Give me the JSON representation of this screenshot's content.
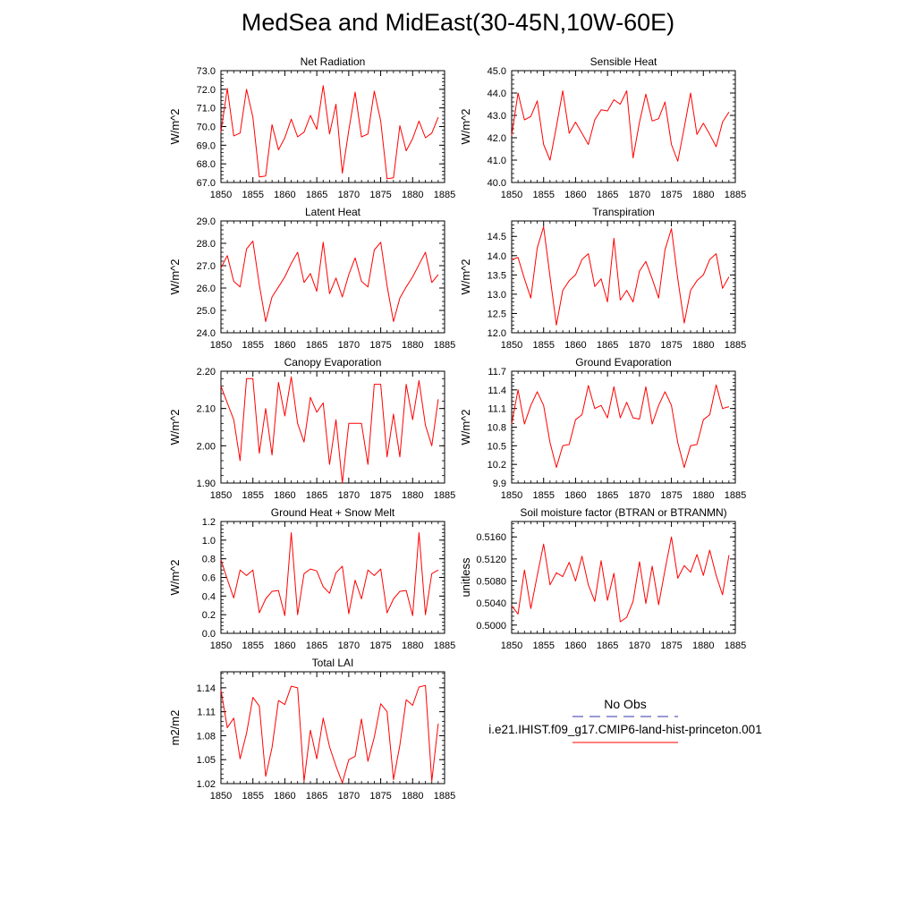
{
  "title": "MedSea and MidEast(30-45N,10W-60E)",
  "legend": {
    "obs_label": "No Obs",
    "obs_color": "#3333aa",
    "model_label": "i.e21.IHIST.f09_g17.CMIP6-land-hist-princeton.001",
    "model_color": "#ff0000"
  },
  "chart_data": [
    {
      "type": "line",
      "title": "Net Radiation",
      "ylabel": "W/m^2",
      "xlim": [
        1850,
        1885
      ],
      "xticks": [
        "1850",
        "1855",
        "1860",
        "1865",
        "1870",
        "1875",
        "1880",
        "1885"
      ],
      "ylim": [
        67.0,
        73.0
      ],
      "yticks": [
        "67.0",
        "68.0",
        "69.0",
        "70.0",
        "71.0",
        "72.0",
        "73.0"
      ],
      "x": [
        1850,
        1851,
        1852,
        1853,
        1854,
        1855,
        1856,
        1857,
        1858,
        1859,
        1860,
        1861,
        1862,
        1863,
        1864,
        1865,
        1866,
        1867,
        1868,
        1869,
        1870,
        1871,
        1872,
        1873,
        1874,
        1875,
        1876,
        1877,
        1878,
        1879,
        1880,
        1881,
        1882,
        1883,
        1884
      ],
      "series": [
        {
          "values": [
            69.7,
            72.05,
            69.5,
            69.65,
            72.0,
            70.5,
            67.3,
            67.35,
            70.1,
            68.75,
            69.4,
            70.4,
            69.45,
            69.7,
            70.6,
            69.85,
            72.2,
            69.6,
            71.2,
            67.5,
            69.8,
            71.85,
            69.45,
            69.6,
            71.9,
            70.3,
            67.2,
            67.25,
            70.05,
            68.7,
            69.35,
            70.3,
            69.4,
            69.65,
            70.5
          ]
        }
      ]
    },
    {
      "type": "line",
      "title": "Sensible Heat",
      "ylabel": "W/m^2",
      "xlim": [
        1850,
        1885
      ],
      "xticks": [
        "1850",
        "1855",
        "1860",
        "1865",
        "1870",
        "1875",
        "1880",
        "1885"
      ],
      "ylim": [
        40.0,
        45.0
      ],
      "yticks": [
        "40.0",
        "41.0",
        "42.0",
        "43.0",
        "44.0",
        "45.0"
      ],
      "x": [
        1850,
        1851,
        1852,
        1853,
        1854,
        1855,
        1856,
        1857,
        1858,
        1859,
        1860,
        1861,
        1862,
        1863,
        1864,
        1865,
        1866,
        1867,
        1868,
        1869,
        1870,
        1871,
        1872,
        1873,
        1874,
        1875,
        1876,
        1877,
        1878,
        1879,
        1880,
        1881,
        1882,
        1883,
        1884
      ],
      "series": [
        {
          "values": [
            42.1,
            44.0,
            42.8,
            42.95,
            43.65,
            41.7,
            41.0,
            42.5,
            44.1,
            42.2,
            42.7,
            42.2,
            41.7,
            42.8,
            43.25,
            43.2,
            43.7,
            43.5,
            44.1,
            41.1,
            42.7,
            43.95,
            42.75,
            42.85,
            43.6,
            41.7,
            40.95,
            42.45,
            44.0,
            42.15,
            42.65,
            42.15,
            41.6,
            42.7,
            43.15
          ]
        }
      ]
    },
    {
      "type": "line",
      "title": "Latent Heat",
      "ylabel": "W/m^2",
      "xlim": [
        1850,
        1885
      ],
      "xticks": [
        "1850",
        "1855",
        "1860",
        "1865",
        "1870",
        "1875",
        "1880",
        "1885"
      ],
      "ylim": [
        24.0,
        29.0
      ],
      "yticks": [
        "24.0",
        "25.0",
        "26.0",
        "27.0",
        "28.0",
        "29.0"
      ],
      "x": [
        1850,
        1851,
        1852,
        1853,
        1854,
        1855,
        1856,
        1857,
        1858,
        1859,
        1860,
        1861,
        1862,
        1863,
        1864,
        1865,
        1866,
        1867,
        1868,
        1869,
        1870,
        1871,
        1872,
        1873,
        1874,
        1875,
        1876,
        1877,
        1878,
        1879,
        1880,
        1881,
        1882,
        1883,
        1884
      ],
      "series": [
        {
          "values": [
            26.9,
            27.45,
            26.3,
            26.05,
            27.75,
            28.1,
            26.15,
            24.5,
            25.6,
            26.05,
            26.5,
            27.1,
            27.6,
            26.25,
            26.65,
            25.85,
            28.05,
            25.75,
            26.45,
            25.6,
            26.6,
            27.35,
            26.3,
            26.05,
            27.7,
            28.05,
            26.1,
            24.5,
            25.55,
            26.05,
            26.5,
            27.05,
            27.6,
            26.25,
            26.6
          ]
        }
      ]
    },
    {
      "type": "line",
      "title": "Transpiration",
      "ylabel": "W/m^2",
      "xlim": [
        1850,
        1885
      ],
      "xticks": [
        "1850",
        "1855",
        "1860",
        "1865",
        "1870",
        "1875",
        "1880",
        "1885"
      ],
      "ylim": [
        12.0,
        14.9
      ],
      "yticks": [
        "12.0",
        "12.5",
        "13.0",
        "13.5",
        "14.0",
        "14.5"
      ],
      "x": [
        1850,
        1851,
        1852,
        1853,
        1854,
        1855,
        1856,
        1857,
        1858,
        1859,
        1860,
        1861,
        1862,
        1863,
        1864,
        1865,
        1866,
        1867,
        1868,
        1869,
        1870,
        1871,
        1872,
        1873,
        1874,
        1875,
        1876,
        1877,
        1878,
        1879,
        1880,
        1881,
        1882,
        1883,
        1884
      ],
      "series": [
        {
          "values": [
            13.9,
            13.95,
            13.4,
            12.9,
            14.2,
            14.75,
            13.45,
            12.2,
            13.1,
            13.35,
            13.5,
            13.9,
            14.05,
            13.2,
            13.4,
            12.8,
            14.45,
            12.85,
            13.1,
            12.8,
            13.6,
            13.85,
            13.4,
            12.9,
            14.15,
            14.7,
            13.4,
            12.25,
            13.1,
            13.35,
            13.5,
            13.9,
            14.05,
            13.15,
            13.45
          ]
        }
      ]
    },
    {
      "type": "line",
      "title": "Canopy Evaporation",
      "ylabel": "W/m^2",
      "xlim": [
        1850,
        1885
      ],
      "xticks": [
        "1850",
        "1855",
        "1860",
        "1865",
        "1870",
        "1875",
        "1880",
        "1885"
      ],
      "ylim": [
        1.9,
        2.2
      ],
      "yticks": [
        "1.90",
        "2.00",
        "2.10",
        "2.20"
      ],
      "x": [
        1850,
        1851,
        1852,
        1853,
        1854,
        1855,
        1856,
        1857,
        1858,
        1859,
        1860,
        1861,
        1862,
        1863,
        1864,
        1865,
        1866,
        1867,
        1868,
        1869,
        1870,
        1871,
        1872,
        1873,
        1874,
        1875,
        1876,
        1877,
        1878,
        1879,
        1880,
        1881,
        1882,
        1883,
        1884
      ],
      "series": [
        {
          "values": [
            2.16,
            2.115,
            2.07,
            1.96,
            2.18,
            2.18,
            1.98,
            2.1,
            1.975,
            2.17,
            2.08,
            2.185,
            2.06,
            2.01,
            2.13,
            2.09,
            2.115,
            1.95,
            2.07,
            1.9,
            2.06,
            2.06,
            2.06,
            1.95,
            2.165,
            2.165,
            1.97,
            2.085,
            1.97,
            2.165,
            2.07,
            2.175,
            2.055,
            2.0,
            2.125
          ]
        }
      ]
    },
    {
      "type": "line",
      "title": "Ground Evaporation",
      "ylabel": "W/m^2",
      "xlim": [
        1850,
        1885
      ],
      "xticks": [
        "1850",
        "1855",
        "1860",
        "1865",
        "1870",
        "1875",
        "1880",
        "1885"
      ],
      "ylim": [
        9.9,
        11.7
      ],
      "yticks": [
        "9.9",
        "10.2",
        "10.5",
        "10.8",
        "11.1",
        "11.4",
        "11.7"
      ],
      "x": [
        1850,
        1851,
        1852,
        1853,
        1854,
        1855,
        1856,
        1857,
        1858,
        1859,
        1860,
        1861,
        1862,
        1863,
        1864,
        1865,
        1866,
        1867,
        1868,
        1869,
        1870,
        1871,
        1872,
        1873,
        1874,
        1875,
        1876,
        1877,
        1878,
        1879,
        1880,
        1881,
        1882,
        1883,
        1884
      ],
      "series": [
        {
          "values": [
            10.85,
            11.4,
            10.85,
            11.15,
            11.37,
            11.15,
            10.55,
            10.15,
            10.5,
            10.52,
            10.92,
            11.0,
            11.47,
            11.1,
            11.15,
            10.95,
            11.45,
            10.95,
            11.2,
            10.95,
            10.93,
            11.45,
            10.85,
            11.15,
            11.37,
            11.15,
            10.55,
            10.15,
            10.5,
            10.52,
            10.92,
            11.0,
            11.48,
            11.1,
            11.13
          ]
        }
      ]
    },
    {
      "type": "line",
      "title": "Ground Heat + Snow Melt",
      "ylabel": "W/m^2",
      "xlim": [
        1850,
        1885
      ],
      "xticks": [
        "1850",
        "1855",
        "1860",
        "1865",
        "1870",
        "1875",
        "1880",
        "1885"
      ],
      "ylim": [
        0.0,
        1.2
      ],
      "yticks": [
        "0.0",
        "0.2",
        "0.4",
        "0.6",
        "0.8",
        "1.0",
        "1.2"
      ],
      "x": [
        1850,
        1851,
        1852,
        1853,
        1854,
        1855,
        1856,
        1857,
        1858,
        1859,
        1860,
        1861,
        1862,
        1863,
        1864,
        1865,
        1866,
        1867,
        1868,
        1869,
        1870,
        1871,
        1872,
        1873,
        1874,
        1875,
        1876,
        1877,
        1878,
        1879,
        1880,
        1881,
        1882,
        1883,
        1884
      ],
      "series": [
        {
          "values": [
            0.79,
            0.58,
            0.38,
            0.68,
            0.62,
            0.68,
            0.22,
            0.37,
            0.45,
            0.46,
            0.19,
            1.08,
            0.2,
            0.64,
            0.69,
            0.67,
            0.5,
            0.43,
            0.65,
            0.72,
            0.21,
            0.57,
            0.37,
            0.68,
            0.62,
            0.69,
            0.22,
            0.37,
            0.45,
            0.46,
            0.19,
            1.08,
            0.2,
            0.64,
            0.68
          ]
        }
      ]
    },
    {
      "type": "line",
      "title": "Soil moisture factor (BTRAN or BTRANMN)",
      "ylabel": "unitless",
      "xlim": [
        1850,
        1885
      ],
      "xticks": [
        "1850",
        "1855",
        "1860",
        "1865",
        "1870",
        "1875",
        "1880",
        "1885"
      ],
      "ylim": [
        0.4985,
        0.5188
      ],
      "yticks": [
        "0.5000",
        "0.5040",
        "0.5080",
        "0.5120",
        "0.5160"
      ],
      "x": [
        1850,
        1851,
        1852,
        1853,
        1854,
        1855,
        1856,
        1857,
        1858,
        1859,
        1860,
        1861,
        1862,
        1863,
        1864,
        1865,
        1866,
        1867,
        1868,
        1869,
        1870,
        1871,
        1872,
        1873,
        1874,
        1875,
        1876,
        1877,
        1878,
        1879,
        1880,
        1881,
        1882,
        1883,
        1884
      ],
      "series": [
        {
          "values": [
            0.5035,
            0.502,
            0.51,
            0.503,
            0.509,
            0.5147,
            0.5073,
            0.5095,
            0.5088,
            0.5114,
            0.508,
            0.5125,
            0.5073,
            0.5043,
            0.5117,
            0.5045,
            0.5094,
            0.5006,
            0.5014,
            0.5043,
            0.5115,
            0.5039,
            0.5107,
            0.5037,
            0.51,
            0.516,
            0.5085,
            0.5108,
            0.5096,
            0.5128,
            0.509,
            0.5136,
            0.509,
            0.5055,
            0.5127
          ]
        }
      ]
    },
    {
      "type": "line",
      "title": "Total LAI",
      "ylabel": "m2/m2",
      "xlim": [
        1850,
        1885
      ],
      "xticks": [
        "1850",
        "1855",
        "1860",
        "1865",
        "1870",
        "1875",
        "1880",
        "1885"
      ],
      "ylim": [
        1.02,
        1.16
      ],
      "yticks": [
        "1.02",
        "1.05",
        "1.08",
        "1.11",
        "1.14"
      ],
      "x": [
        1850,
        1851,
        1852,
        1853,
        1854,
        1855,
        1856,
        1857,
        1858,
        1859,
        1860,
        1861,
        1862,
        1863,
        1864,
        1865,
        1866,
        1867,
        1868,
        1869,
        1870,
        1871,
        1872,
        1873,
        1874,
        1875,
        1876,
        1877,
        1878,
        1879,
        1880,
        1881,
        1882,
        1883,
        1884
      ],
      "series": [
        {
          "values": [
            1.137,
            1.09,
            1.102,
            1.051,
            1.083,
            1.128,
            1.117,
            1.029,
            1.065,
            1.124,
            1.119,
            1.142,
            1.14,
            1.023,
            1.087,
            1.051,
            1.102,
            1.066,
            1.042,
            1.021,
            1.05,
            1.054,
            1.101,
            1.048,
            1.078,
            1.12,
            1.11,
            1.025,
            1.068,
            1.125,
            1.118,
            1.141,
            1.143,
            1.023,
            1.095
          ]
        }
      ]
    }
  ]
}
